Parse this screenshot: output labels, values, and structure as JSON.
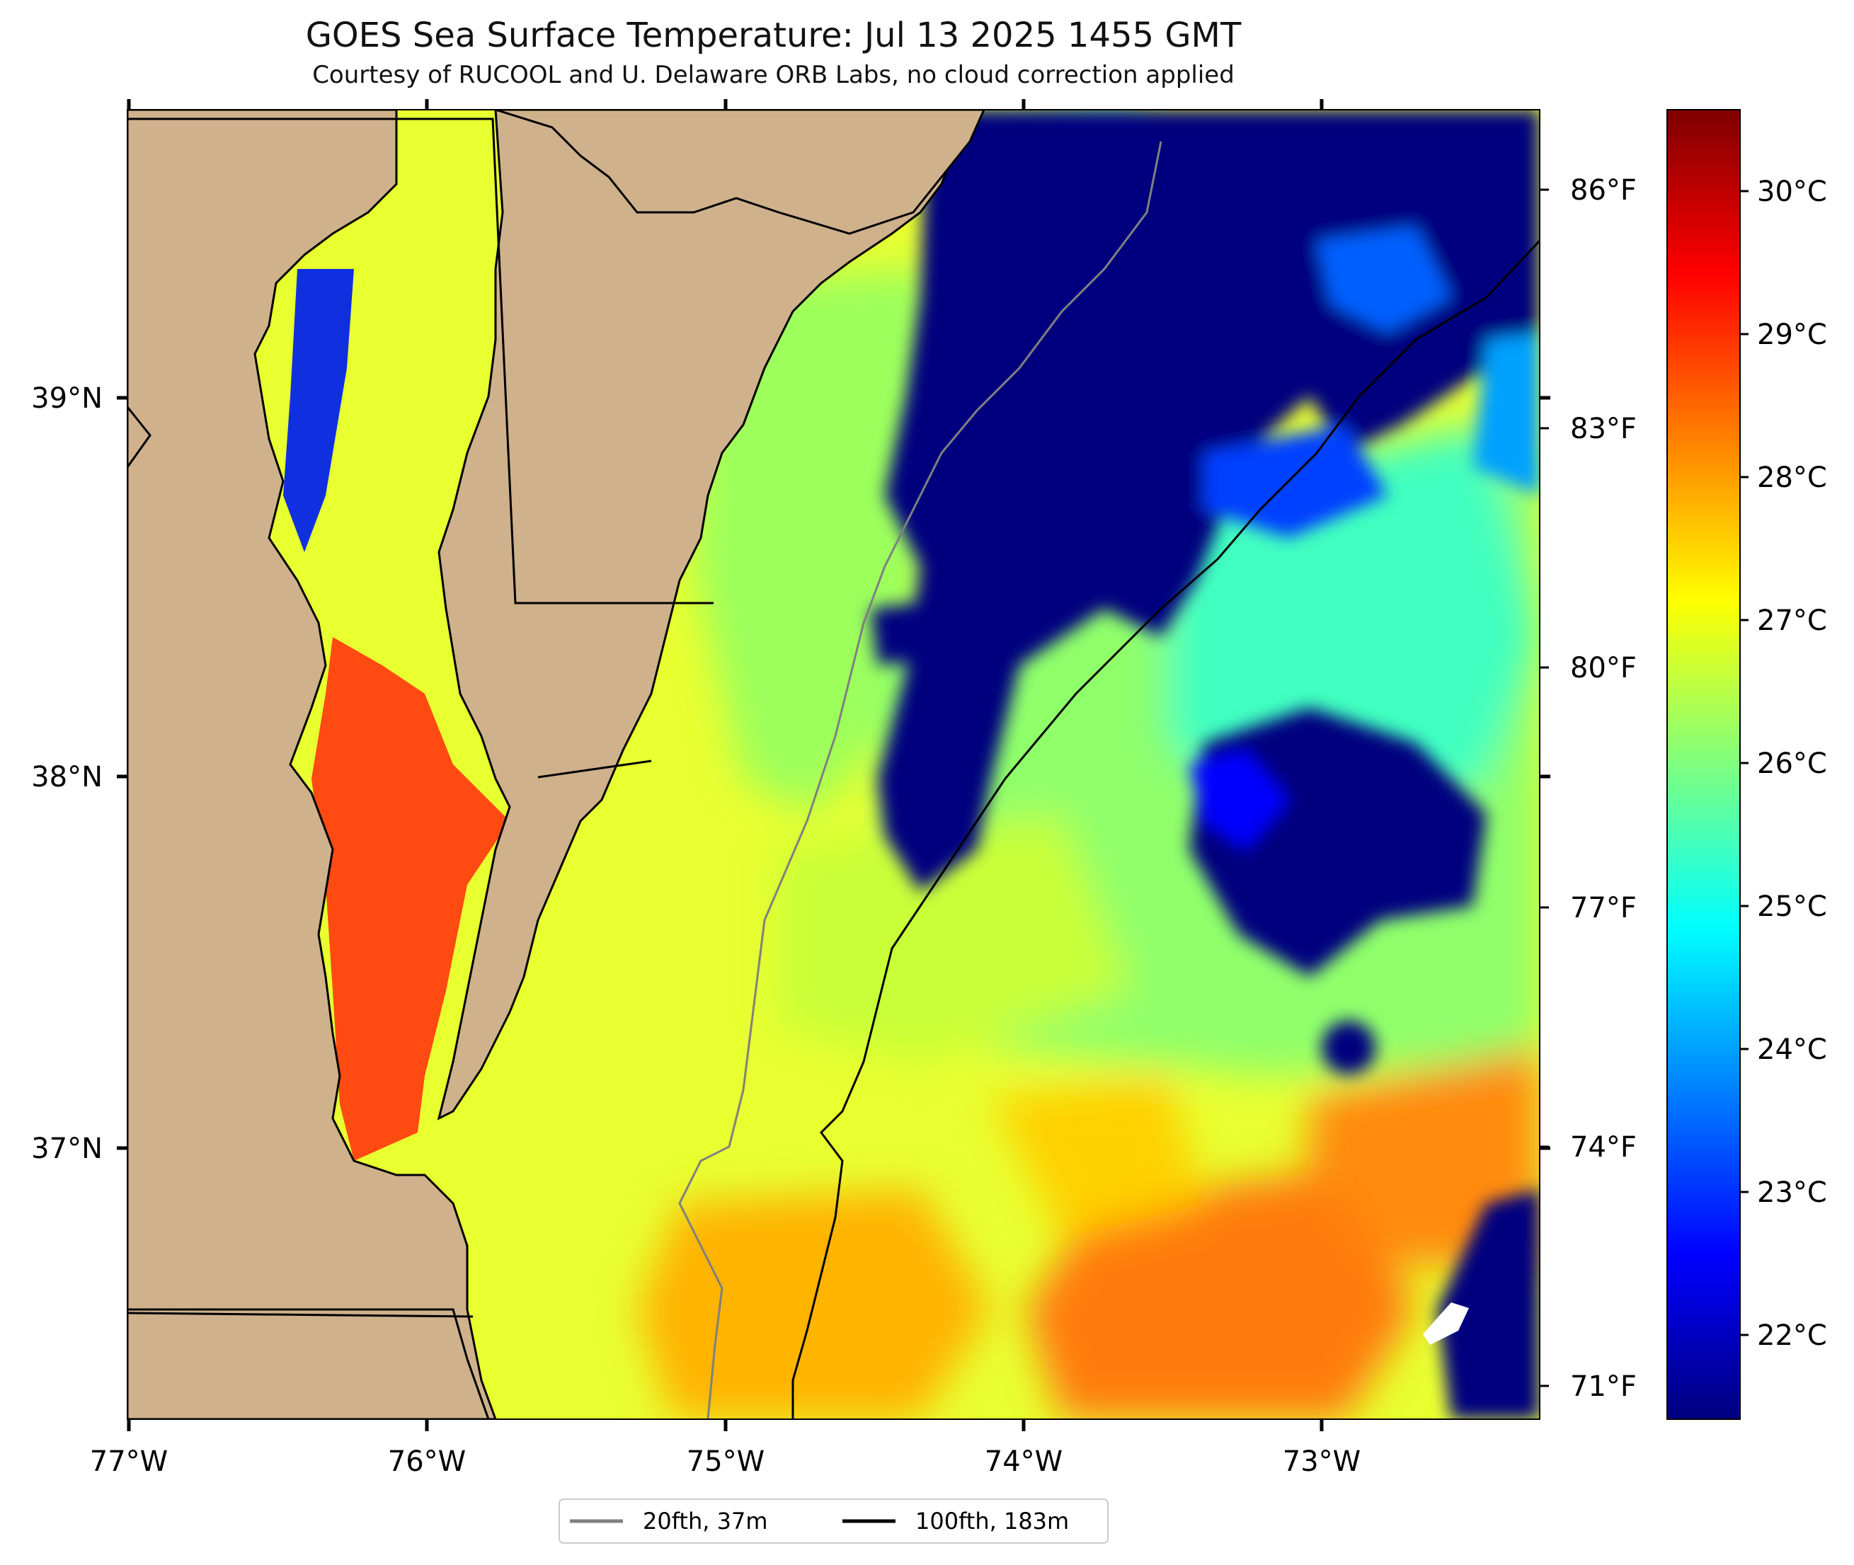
{
  "title": "GOES Sea Surface Temperature: Jul 13 2025 1455 GMT",
  "subtitle": "Courtesy of RUCOOL and U. Delaware ORB Labs, no cloud correction applied",
  "map": {
    "lon_ticks": [
      "77°W",
      "76°W",
      "75°W",
      "74°W",
      "73°W"
    ],
    "lat_ticks": [
      "39°N",
      "38°N",
      "37°N"
    ]
  },
  "colorbar": {
    "celsius_ticks": [
      "30°C",
      "29°C",
      "28°C",
      "27°C",
      "26°C",
      "25°C",
      "24°C",
      "23°C",
      "22°C"
    ],
    "fahrenheit_ticks": [
      "86°F",
      "83°F",
      "80°F",
      "77°F",
      "74°F",
      "71°F"
    ],
    "colors": [
      "#00007f",
      "#0000ff",
      "#007fff",
      "#00ffff",
      "#7fff7f",
      "#ffff00",
      "#ff7f00",
      "#ff0000",
      "#7f0000"
    ]
  },
  "legend": {
    "items": [
      {
        "label": "20fth, 37m",
        "color": "#808080"
      },
      {
        "label": "100fth, 183m",
        "color": "#000000"
      }
    ]
  },
  "colors": {
    "land": "#cfb18c",
    "ocean_cold": "#00007f",
    "cloud_mask": "#ffffff"
  }
}
